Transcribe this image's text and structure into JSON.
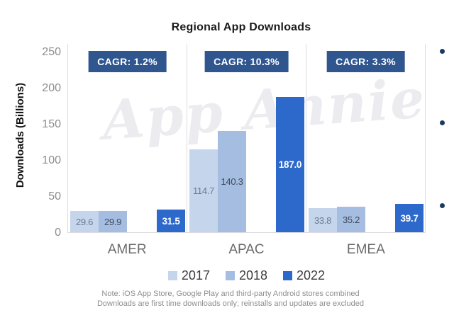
{
  "title": "Regional App Downloads",
  "y_axis": {
    "label": "Downloads (Billions)",
    "ticks": [
      "250",
      "200",
      "150",
      "100",
      "50",
      "0"
    ]
  },
  "watermark": "App Annie",
  "note": {
    "line1": "Note: iOS App Store, Google Play and third-party Android stores combined",
    "line2": "Downloads are first time downloads only; reinstalls and updates are excluded"
  },
  "legend": [
    {
      "label": "2017",
      "color": "#c5d5eb"
    },
    {
      "label": "2018",
      "color": "#a4bde0"
    },
    {
      "label": "2022",
      "color": "#2d68cb"
    }
  ],
  "colors": {
    "badge_background": "#30568f",
    "badge_text": "#ffffff",
    "axis_line": "#dcdce0",
    "bullet": "#1b3a63",
    "watermark_text": "#ececf0"
  },
  "chart_data": {
    "type": "bar",
    "categories": [
      "AMER",
      "APAC",
      "EMEA"
    ],
    "series": [
      {
        "name": "2017",
        "color": "#c5d5eb",
        "label_color": "#6b7b92",
        "values": [
          29.6,
          114.7,
          33.8
        ]
      },
      {
        "name": "2018",
        "color": "#a4bde0",
        "label_color": "#3f4b5c",
        "values": [
          29.9,
          140.3,
          35.2
        ]
      },
      {
        "name": "2022",
        "color": "#2d68cb",
        "label_color": "#ffffff",
        "values": [
          31.5,
          187.0,
          39.7
        ]
      }
    ],
    "cagr_labels": [
      "CAGR: 1.2%",
      "CAGR: 10.3%",
      "CAGR: 3.3%"
    ],
    "title": "Regional App Downloads",
    "xlabel": "",
    "ylabel": "Downloads (Billions)",
    "ylim": [
      0,
      250
    ],
    "grid": false,
    "legend_position": "bottom",
    "value_labels": "inside-center"
  }
}
